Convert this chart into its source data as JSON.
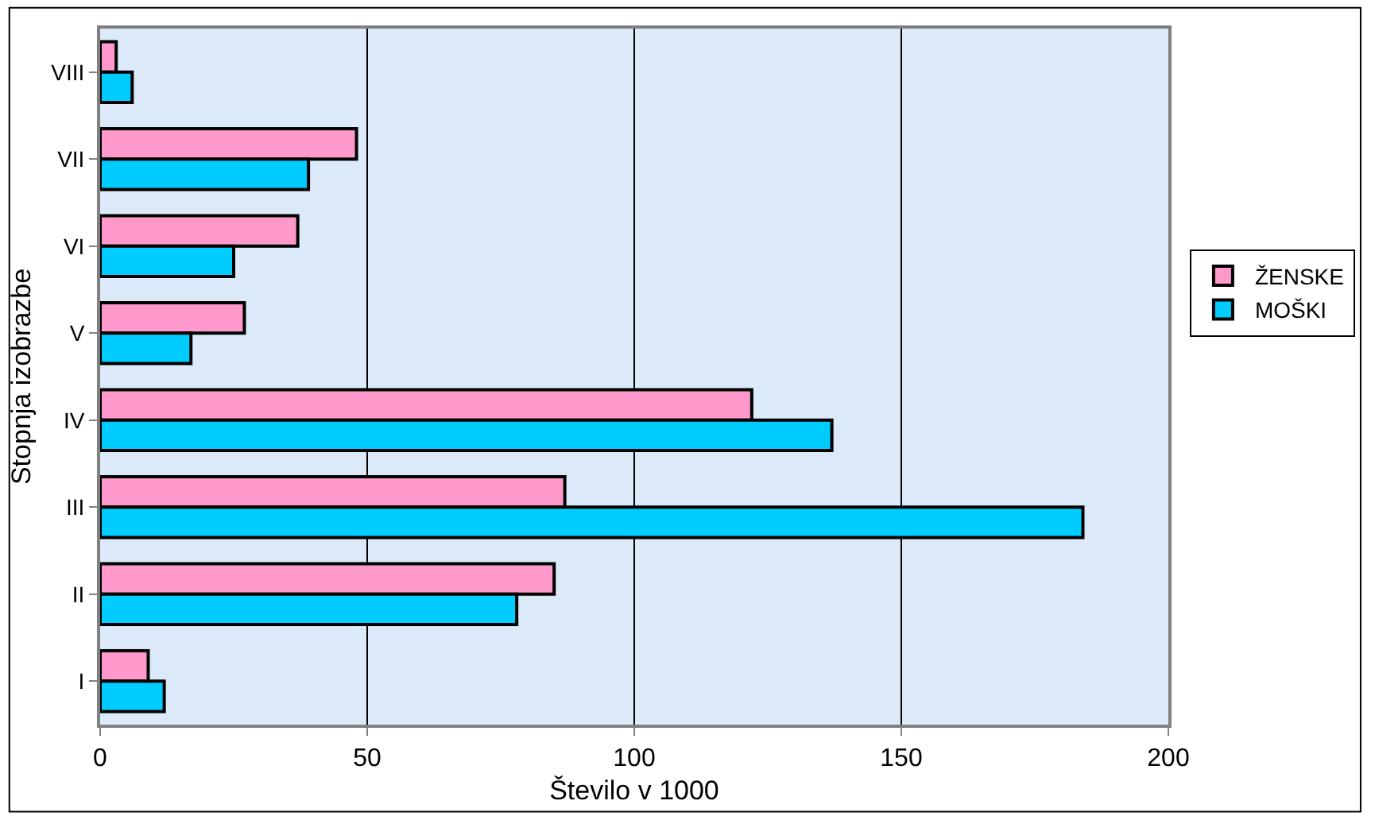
{
  "chart_data": {
    "type": "bar",
    "orientation": "horizontal",
    "xlabel": "Število v 1000",
    "ylabel": "Stopnja izobrazbe",
    "categories": [
      "VIII",
      "VII",
      "VI",
      "V",
      "IV",
      "III",
      "II",
      "I"
    ],
    "series": [
      {
        "name": "ŽENSKE",
        "color": "#ff99cc",
        "values": [
          3,
          48,
          37,
          27,
          122,
          87,
          85,
          9
        ]
      },
      {
        "name": "MOŠKI",
        "color": "#00ccff",
        "values": [
          6,
          39,
          25,
          17,
          137,
          184,
          78,
          12
        ]
      }
    ],
    "xlim": [
      0,
      200
    ],
    "xticks": [
      0,
      50,
      100,
      150,
      200
    ],
    "grid": "x",
    "legend": "right"
  }
}
